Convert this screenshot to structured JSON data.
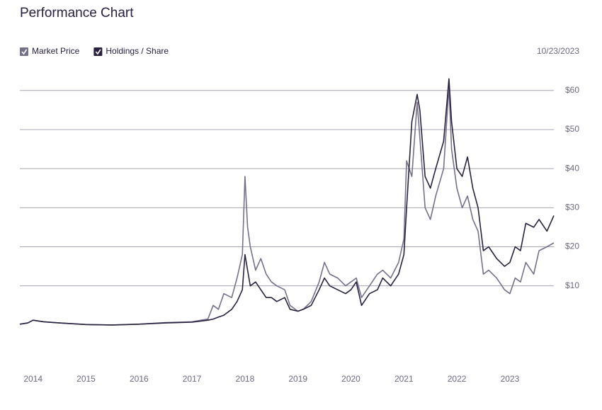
{
  "chart_data": {
    "type": "line",
    "title": "Performance Chart",
    "as_of": "10/23/2023",
    "x": [
      2013.75,
      2013.9,
      2014.0,
      2014.2,
      2014.5,
      2015.0,
      2015.5,
      2016.0,
      2016.5,
      2017.0,
      2017.3,
      2017.4,
      2017.5,
      2017.6,
      2017.75,
      2017.85,
      2017.95,
      2018.0,
      2018.05,
      2018.1,
      2018.2,
      2018.3,
      2018.4,
      2018.5,
      2018.6,
      2018.75,
      2018.85,
      2019.0,
      2019.1,
      2019.25,
      2019.4,
      2019.5,
      2019.6,
      2019.75,
      2019.9,
      2020.0,
      2020.1,
      2020.2,
      2020.35,
      2020.5,
      2020.6,
      2020.75,
      2020.9,
      2021.0,
      2021.05,
      2021.15,
      2021.25,
      2021.3,
      2021.4,
      2021.5,
      2021.6,
      2021.75,
      2021.85,
      2021.9,
      2022.0,
      2022.1,
      2022.2,
      2022.3,
      2022.4,
      2022.5,
      2022.6,
      2022.75,
      2022.9,
      2023.0,
      2023.1,
      2023.2,
      2023.3,
      2023.45,
      2023.55,
      2023.7,
      2023.83
    ],
    "series": [
      {
        "name": "Market Price",
        "color": "#77708c",
        "values": [
          0.2,
          0.5,
          1.2,
          0.8,
          0.5,
          0.1,
          0,
          0.2,
          0.6,
          0.8,
          1.5,
          5,
          4,
          8,
          7,
          12,
          18,
          38,
          25,
          20,
          14,
          17,
          13,
          11,
          10,
          9,
          5,
          3.5,
          4,
          6,
          11,
          16,
          13,
          12,
          10,
          11,
          12,
          7,
          10,
          13,
          14,
          12,
          16,
          22,
          42,
          38,
          57,
          48,
          30,
          27,
          33,
          40,
          61,
          45,
          35,
          30,
          33,
          27,
          24,
          13,
          14,
          12,
          9,
          8,
          12,
          11,
          16,
          13,
          19,
          20,
          21
        ]
      },
      {
        "name": "Holdings / Share",
        "color": "#2a2140",
        "values": [
          0.2,
          0.5,
          1.2,
          0.8,
          0.5,
          0.1,
          0,
          0.2,
          0.5,
          0.7,
          1.2,
          1.5,
          2,
          2.5,
          4,
          6,
          9,
          18,
          14,
          10,
          11,
          9,
          7,
          7,
          6,
          7,
          4,
          3.5,
          4,
          5,
          9,
          12,
          10,
          9,
          8,
          9,
          11,
          5,
          8,
          9,
          12,
          10,
          13,
          18,
          30,
          52,
          59,
          55,
          38,
          35,
          40,
          47,
          63,
          52,
          40,
          38,
          43,
          35,
          30,
          19,
          20,
          17,
          15,
          16,
          20,
          19,
          26,
          25,
          27,
          24,
          28
        ]
      }
    ],
    "xlim": [
      2013.75,
      2023.83
    ],
    "xticks": [
      2014,
      2015,
      2016,
      2017,
      2018,
      2019,
      2020,
      2021,
      2022,
      2023
    ],
    "ylim": [
      -8,
      66
    ],
    "yticks": [
      {
        "value": 10,
        "label": "$10"
      },
      {
        "value": 20,
        "label": "$20"
      },
      {
        "value": 30,
        "label": "$30"
      },
      {
        "value": 40,
        "label": "$40"
      },
      {
        "value": 50,
        "label": "$50"
      },
      {
        "value": 60,
        "label": "$60"
      }
    ],
    "grid": true
  }
}
